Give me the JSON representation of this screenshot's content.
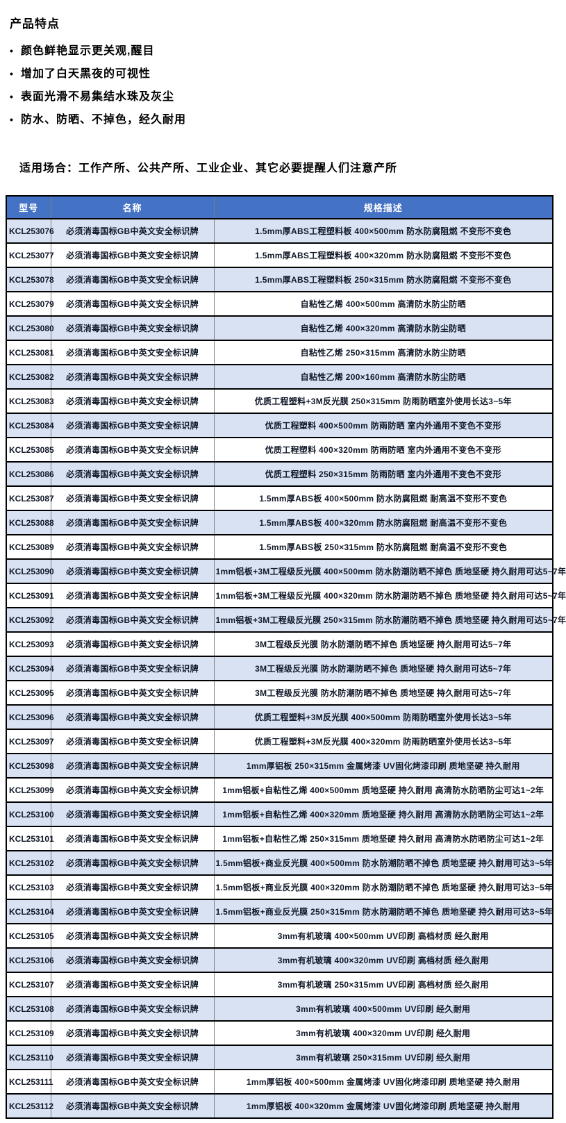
{
  "features": {
    "title": "产品特点",
    "bullet_icon": "•",
    "bullets": [
      "颜色鲜艳显示更关观,醒目",
      "增加了白天黑夜的可视性",
      "表面光滑不易集结水珠及灰尘",
      "防水、防晒、不掉色，经久耐用"
    ],
    "occasions": "适用场合：工作产所、公共产所、工业企业、其它必要提醒人们注意产所"
  },
  "colors": {
    "header_bg": "#4472C4",
    "header_text": "#FFFFFF",
    "stripe_row_bg": "#D9E2F3",
    "plain_row_bg": "#FFFFFF",
    "border_dark": "#000000",
    "border_gray": "#7F7F7F"
  },
  "table": {
    "columns": [
      "型号",
      "名称",
      "规格描述"
    ],
    "rows": [
      {
        "model": "KCL253076",
        "name": "必须消毒国标GB中英文安全标识牌",
        "spec": "1.5mm厚ABS工程塑料板 400×500mm 防水防腐阻燃 不变形不变色"
      },
      {
        "model": "KCL253077",
        "name": "必须消毒国标GB中英文安全标识牌",
        "spec": "1.5mm厚ABS工程塑料板 400×320mm 防水防腐阻燃 不变形不变色"
      },
      {
        "model": "KCL253078",
        "name": "必须消毒国标GB中英文安全标识牌",
        "spec": "1.5mm厚ABS工程塑料板 250×315mm 防水防腐阻燃 不变形不变色"
      },
      {
        "model": "KCL253079",
        "name": "必须消毒国标GB中英文安全标识牌",
        "spec": "自粘性乙烯 400×500mm 高清防水防尘防晒"
      },
      {
        "model": "KCL253080",
        "name": "必须消毒国标GB中英文安全标识牌",
        "spec": "自粘性乙烯 400×320mm 高清防水防尘防晒"
      },
      {
        "model": "KCL253081",
        "name": "必须消毒国标GB中英文安全标识牌",
        "spec": "自粘性乙烯 250×315mm 高清防水防尘防晒"
      },
      {
        "model": "KCL253082",
        "name": "必须消毒国标GB中英文安全标识牌",
        "spec": "自粘性乙烯 200×160mm 高清防水防尘防晒"
      },
      {
        "model": "KCL253083",
        "name": "必须消毒国标GB中英文安全标识牌",
        "spec": "优质工程塑料+3M反光膜 250×315mm 防雨防晒室外使用长达3~5年"
      },
      {
        "model": "KCL253084",
        "name": "必须消毒国标GB中英文安全标识牌",
        "spec": "优质工程塑料 400×500mm 防雨防晒 室内外通用不变色不变形"
      },
      {
        "model": "KCL253085",
        "name": "必须消毒国标GB中英文安全标识牌",
        "spec": "优质工程塑料 400×320mm 防雨防晒 室内外通用不变色不变形"
      },
      {
        "model": "KCL253086",
        "name": "必须消毒国标GB中英文安全标识牌",
        "spec": "优质工程塑料 250×315mm 防雨防晒 室内外通用不变色不变形"
      },
      {
        "model": "KCL253087",
        "name": "必须消毒国标GB中英文安全标识牌",
        "spec": "1.5mm厚ABS板 400×500mm 防水防腐阻燃 耐高温不变形不变色"
      },
      {
        "model": "KCL253088",
        "name": "必须消毒国标GB中英文安全标识牌",
        "spec": "1.5mm厚ABS板 400×320mm 防水防腐阻燃 耐高温不变形不变色"
      },
      {
        "model": "KCL253089",
        "name": "必须消毒国标GB中英文安全标识牌",
        "spec": "1.5mm厚ABS板 250×315mm 防水防腐阻燃 耐高温不变形不变色"
      },
      {
        "model": "KCL253090",
        "name": "必须消毒国标GB中英文安全标识牌",
        "spec": "1mm铝板+3M工程级反光膜 400×500mm 防水防潮防晒不掉色 质地坚硬 持久耐用可达5~7年"
      },
      {
        "model": "KCL253091",
        "name": "必须消毒国标GB中英文安全标识牌",
        "spec": "1mm铝板+3M工程级反光膜 400×320mm 防水防潮防晒不掉色 质地坚硬 持久耐用可达5~7年"
      },
      {
        "model": "KCL253092",
        "name": "必须消毒国标GB中英文安全标识牌",
        "spec": "1mm铝板+3M工程级反光膜 250×315mm 防水防潮防晒不掉色 质地坚硬 持久耐用可达5~7年"
      },
      {
        "model": "KCL253093",
        "name": "必须消毒国标GB中英文安全标识牌",
        "spec": "3M工程级反光膜 防水防潮防晒不掉色 质地坚硬 持久耐用可达5~7年"
      },
      {
        "model": "KCL253094",
        "name": "必须消毒国标GB中英文安全标识牌",
        "spec": "3M工程级反光膜 防水防潮防晒不掉色 质地坚硬 持久耐用可达5~7年"
      },
      {
        "model": "KCL253095",
        "name": "必须消毒国标GB中英文安全标识牌",
        "spec": "3M工程级反光膜 防水防潮防晒不掉色 质地坚硬 持久耐用可达5~7年"
      },
      {
        "model": "KCL253096",
        "name": "必须消毒国标GB中英文安全标识牌",
        "spec": "优质工程塑料+3M反光膜 400×500mm 防雨防晒室外使用长达3~5年"
      },
      {
        "model": "KCL253097",
        "name": "必须消毒国标GB中英文安全标识牌",
        "spec": "优质工程塑料+3M反光膜 400×320mm 防雨防晒室外使用长达3~5年"
      },
      {
        "model": "KCL253098",
        "name": "必须消毒国标GB中英文安全标识牌",
        "spec": "1mm厚铝板 250×315mm 金属烤漆 UV固化烤漆印刷 质地坚硬 持久耐用"
      },
      {
        "model": "KCL253099",
        "name": "必须消毒国标GB中英文安全标识牌",
        "spec": "1mm铝板+自粘性乙烯 400×500mm 质地坚硬 持久耐用 高清防水防晒防尘可达1~2年"
      },
      {
        "model": "KCL253100",
        "name": "必须消毒国标GB中英文安全标识牌",
        "spec": "1mm铝板+自粘性乙烯 400×320mm 质地坚硬 持久耐用 高清防水防晒防尘可达1~2年"
      },
      {
        "model": "KCL253101",
        "name": "必须消毒国标GB中英文安全标识牌",
        "spec": "1mm铝板+自粘性乙烯 250×315mm 质地坚硬 持久耐用 高清防水防晒防尘可达1~2年"
      },
      {
        "model": "KCL253102",
        "name": "必须消毒国标GB中英文安全标识牌",
        "spec": "1.5mm铝板+商业反光膜 400×500mm 防水防潮防晒不掉色 质地坚硬 持久耐用可达3~5年"
      },
      {
        "model": "KCL253103",
        "name": "必须消毒国标GB中英文安全标识牌",
        "spec": "1.5mm铝板+商业反光膜 400×320mm 防水防潮防晒不掉色 质地坚硬 持久耐用可达3~5年"
      },
      {
        "model": "KCL253104",
        "name": "必须消毒国标GB中英文安全标识牌",
        "spec": "1.5mm铝板+商业反光膜 250×315mm 防水防潮防晒不掉色 质地坚硬 持久耐用可达3~5年"
      },
      {
        "model": "KCL253105",
        "name": "必须消毒国标GB中英文安全标识牌",
        "spec": "3mm有机玻璃 400×500mm UV印刷 高档材质 经久耐用"
      },
      {
        "model": "KCL253106",
        "name": "必须消毒国标GB中英文安全标识牌",
        "spec": "3mm有机玻璃 400×320mm UV印刷 高档材质 经久耐用"
      },
      {
        "model": "KCL253107",
        "name": "必须消毒国标GB中英文安全标识牌",
        "spec": "3mm有机玻璃 250×315mm UV印刷 高档材质 经久耐用"
      },
      {
        "model": "KCL253108",
        "name": "必须消毒国标GB中英文安全标识牌",
        "spec": "3mm有机玻璃 400×500mm UV印刷 经久耐用"
      },
      {
        "model": "KCL253109",
        "name": "必须消毒国标GB中英文安全标识牌",
        "spec": "3mm有机玻璃 400×320mm UV印刷 经久耐用"
      },
      {
        "model": "KCL253110",
        "name": "必须消毒国标GB中英文安全标识牌",
        "spec": "3mm有机玻璃 250×315mm UV印刷 经久耐用"
      },
      {
        "model": "KCL253111",
        "name": "必须消毒国标GB中英文安全标识牌",
        "spec": "1mm厚铝板 400×500mm 金属烤漆 UV固化烤漆印刷 质地坚硬 持久耐用"
      },
      {
        "model": "KCL253112",
        "name": "必须消毒国标GB中英文安全标识牌",
        "spec": "1mm厚铝板 400×320mm 金属烤漆 UV固化烤漆印刷 质地坚硬 持久耐用"
      }
    ]
  }
}
